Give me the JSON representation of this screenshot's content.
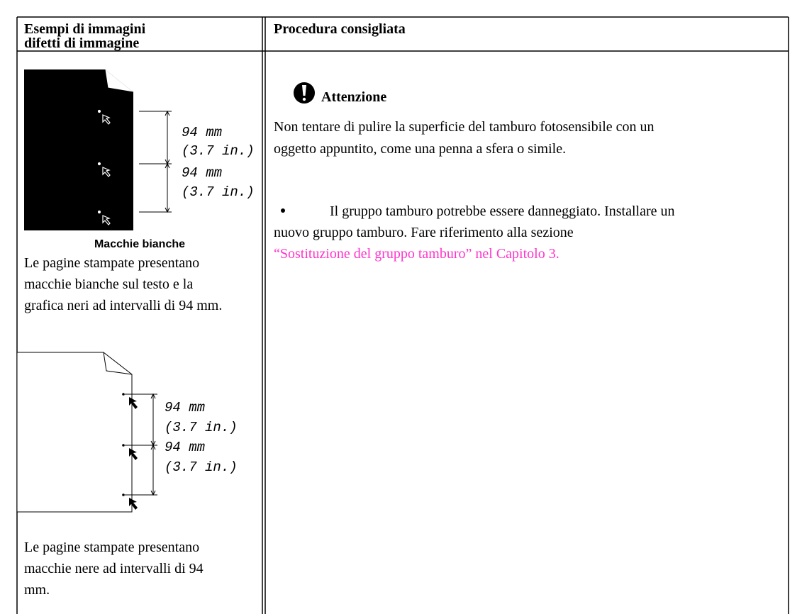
{
  "header": {
    "col1": [
      "Esempi di immagini",
      "difetti di immagine"
    ],
    "col2": "Procedura consigliata"
  },
  "left": {
    "figure1": {
      "dims": [
        "94 mm",
        "(3.7 in.)",
        "94 mm",
        "(3.7 in.)"
      ],
      "caption": "Macchie bianche"
    },
    "description1": [
      "Le pagine stampate presentano",
      "macchie bianche sul testo e la",
      "grafica neri ad intervalli di 94 mm."
    ],
    "figure2": {
      "dims": [
        "94 mm",
        "(3.7 in.)",
        "94 mm",
        "(3.7 in.)"
      ]
    },
    "description2": [
      "Le pagine stampate presentano",
      "macchie nere ad intervalli di 94",
      "mm."
    ]
  },
  "right": {
    "warning": {
      "title": "Attenzione",
      "lines": [
        "Non tentare di pulire la superficie del tamburo fotosensibile con un",
        "oggetto appuntito, come una penna a sfera o simile."
      ]
    },
    "bullet": {
      "lines": [
        "Il gruppo tamburo potrebbe essere danneggiato. Installare un",
        "nuovo gruppo tamburo. Fare riferimento alla sezione"
      ],
      "link": "“Sostituzione del gruppo tamburo” nel Capitolo 3."
    }
  }
}
